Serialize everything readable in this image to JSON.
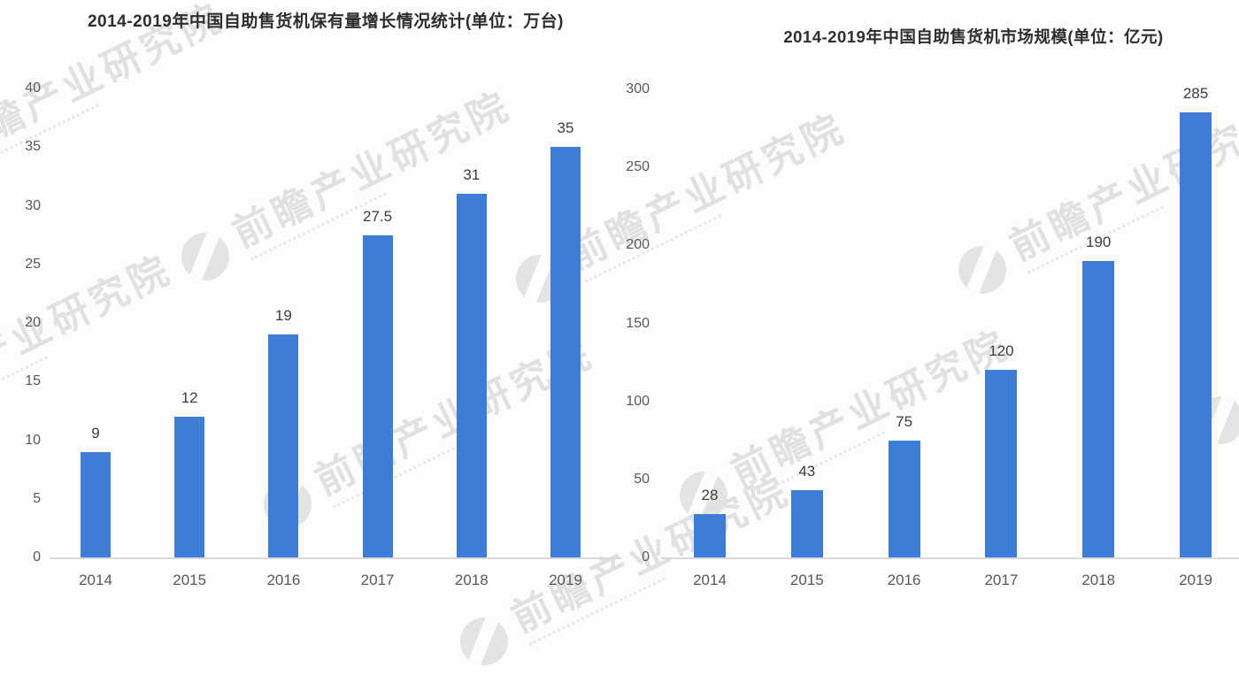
{
  "watermark": {
    "text": "前瞻产业研究院"
  },
  "chart_data": [
    {
      "type": "bar",
      "title": "2014-2019年中国自助售货机保有量增长情况统计(单位：万台)",
      "categories": [
        "2014",
        "2015",
        "2016",
        "2017",
        "2018",
        "2019"
      ],
      "values": [
        9,
        12,
        19,
        27.5,
        31,
        35
      ],
      "value_labels": [
        "9",
        "12",
        "19",
        "27.5",
        "31",
        "35"
      ],
      "xlabel": "",
      "ylabel": "",
      "unit": "万台",
      "ylim": [
        0,
        40
      ],
      "ytick_step": 5,
      "ytick_labels": [
        "0",
        "5",
        "10",
        "15",
        "20",
        "25",
        "30",
        "35",
        "40"
      ],
      "grid": false,
      "legend": "none",
      "bar_color": "#3d7dd8"
    },
    {
      "type": "bar",
      "title": "2014-2019年中国自助售货机市场规模(单位：亿元)",
      "categories": [
        "2014",
        "2015",
        "2016",
        "2017",
        "2018",
        "2019"
      ],
      "values": [
        28,
        43,
        75,
        120,
        190,
        285
      ],
      "value_labels": [
        "28",
        "43",
        "75",
        "120",
        "190",
        "285"
      ],
      "xlabel": "",
      "ylabel": "",
      "unit": "亿元",
      "ylim": [
        0,
        300
      ],
      "ytick_step": 50,
      "ytick_labels": [
        "0",
        "50",
        "100",
        "150",
        "200",
        "250",
        "300"
      ],
      "grid": false,
      "legend": "none",
      "bar_color": "#3d7dd8"
    }
  ]
}
